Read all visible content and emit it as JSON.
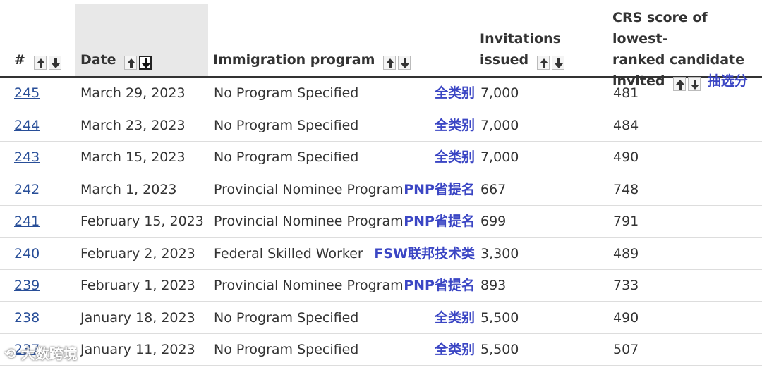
{
  "header": {
    "num_label": "#",
    "date_label": "Date",
    "program_label": "Immigration program",
    "invitations_line1": "Invitations",
    "invitations_line2": "issued",
    "crs_line1": "CRS score of lowest-",
    "crs_line2": "ranked candidate",
    "crs_line3": "invited",
    "crs_annotation": "抽选分"
  },
  "rows": [
    {
      "num": "245",
      "date": "March 29, 2023",
      "program": "No Program Specified",
      "annotation": "全类别",
      "invitations": "7,000",
      "crs": "481"
    },
    {
      "num": "244",
      "date": "March 23, 2023",
      "program": "No Program Specified",
      "annotation": "全类别",
      "invitations": "7,000",
      "crs": "484"
    },
    {
      "num": "243",
      "date": "March 15, 2023",
      "program": "No Program Specified",
      "annotation": "全类别",
      "invitations": "7,000",
      "crs": "490"
    },
    {
      "num": "242",
      "date": "March 1, 2023",
      "program": "Provincial Nominee Program",
      "annotation": "PNP省提名",
      "invitations": "667",
      "crs": "748"
    },
    {
      "num": "241",
      "date": "February 15, 2023",
      "program": "Provincial Nominee Program",
      "annotation": "PNP省提名",
      "invitations": "699",
      "crs": "791"
    },
    {
      "num": "240",
      "date": "February 2, 2023",
      "program": "Federal Skilled Worker",
      "annotation": "FSW联邦技术类",
      "invitations": "3,300",
      "crs": "489"
    },
    {
      "num": "239",
      "date": "February 1, 2023",
      "program": "Provincial Nominee Program",
      "annotation": "PNP省提名",
      "invitations": "893",
      "crs": "733"
    },
    {
      "num": "238",
      "date": "January 18, 2023",
      "program": "No Program Specified",
      "annotation": "全类别",
      "invitations": "5,500",
      "crs": "490"
    },
    {
      "num": "237",
      "date": "January 11, 2023",
      "program": "No Program Specified",
      "annotation": "全类别",
      "invitations": "5,500",
      "crs": "507"
    }
  ],
  "watermark": "大数跨境",
  "colors": {
    "annotation": "#3b46c4",
    "link": "#284e98",
    "sorted_header_bg": "#e8e8e8"
  }
}
